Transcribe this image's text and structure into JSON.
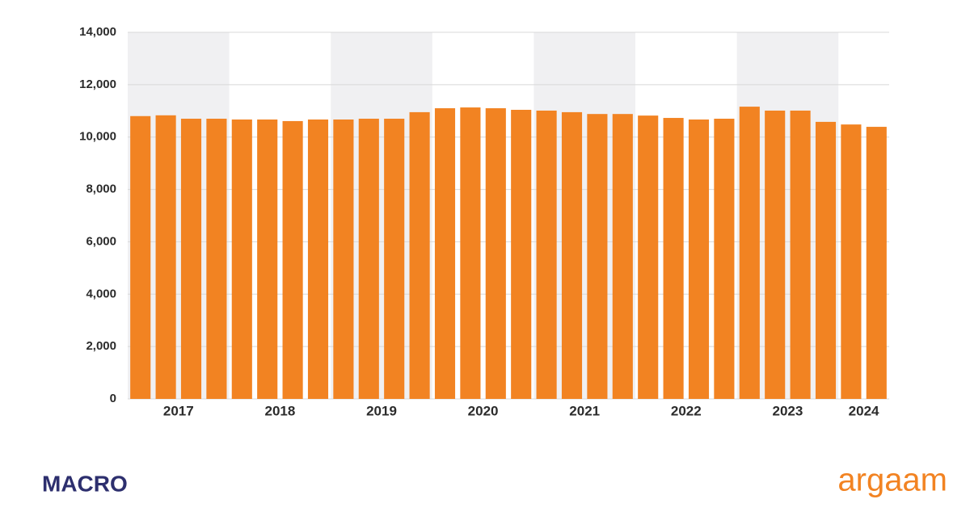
{
  "chart_data": {
    "type": "bar",
    "categories": [
      "2017",
      null,
      null,
      null,
      "2018",
      null,
      null,
      null,
      "2019",
      null,
      null,
      null,
      "2020",
      null,
      null,
      null,
      "2021",
      null,
      null,
      null,
      "2022",
      null,
      null,
      null,
      "2023",
      null,
      null,
      null,
      "2024",
      null
    ],
    "values": [
      10800,
      10830,
      10700,
      10700,
      10670,
      10670,
      10610,
      10670,
      10670,
      10700,
      10700,
      10950,
      11100,
      11130,
      11100,
      11040,
      11010,
      10950,
      10880,
      10880,
      10820,
      10730,
      10670,
      10700,
      11160,
      11010,
      11010,
      10580,
      10480,
      10390
    ],
    "color": "#f28322",
    "ylim": [
      0,
      14000
    ],
    "yticks": [
      0,
      {
        "value": 2000,
        "label": "2,000"
      },
      {
        "value": 4000,
        "label": "4,000"
      },
      {
        "value": 6000,
        "label": "6,000"
      },
      {
        "value": 8000,
        "label": "8,000"
      },
      {
        "value": 10000,
        "label": "10,000"
      },
      {
        "value": 12000,
        "label": "12,000"
      },
      {
        "value": 14000,
        "label": "14,000"
      }
    ],
    "grid": true,
    "band_color": "#f0f0f2"
  },
  "logos": {
    "left": "MACRO",
    "right": "argaam"
  }
}
